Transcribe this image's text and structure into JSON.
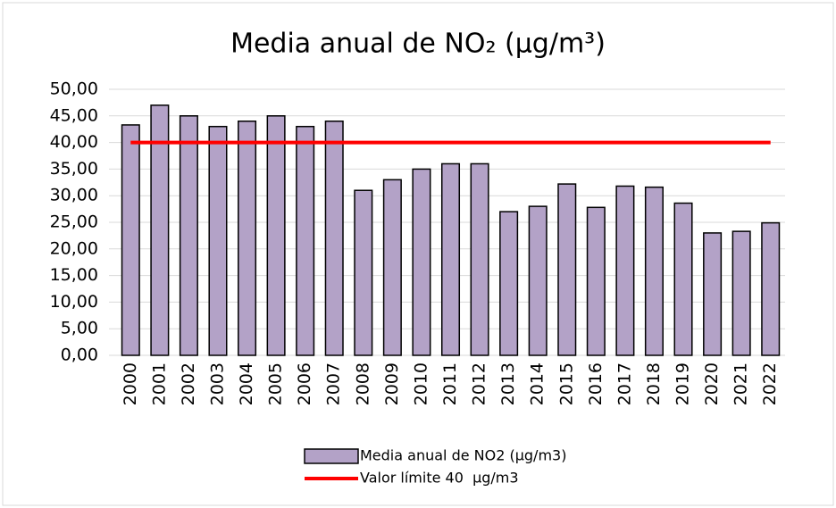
{
  "chart_data": {
    "type": "bar",
    "title": "Media anual de NO₂ (µg/m³)",
    "categories": [
      "2000",
      "2001",
      "2002",
      "2003",
      "2004",
      "2005",
      "2006",
      "2007",
      "2008",
      "2009",
      "2010",
      "2011",
      "2012",
      "2013",
      "2014",
      "2015",
      "2016",
      "2017",
      "2018",
      "2019",
      "2020",
      "2021",
      "2022"
    ],
    "series": [
      {
        "name": "Media anual de NO2 (µg/m3)",
        "type": "bar",
        "color": "#b3a2c7",
        "values": [
          43.3,
          47,
          45,
          43,
          44,
          45,
          43,
          44,
          31,
          33,
          35,
          36,
          36,
          27,
          28,
          32.2,
          27.8,
          31.8,
          31.6,
          28.6,
          23,
          23.3,
          24.9
        ]
      },
      {
        "name": "Valor límite 40  µg/m3",
        "type": "line",
        "color": "#ff0000",
        "values": [
          40,
          40,
          40,
          40,
          40,
          40,
          40,
          40,
          40,
          40,
          40,
          40,
          40,
          40,
          40,
          40,
          40,
          40,
          40,
          40,
          40,
          40,
          40
        ]
      }
    ],
    "ylim": [
      0,
      50
    ],
    "yticks": [
      {
        "value": 0,
        "label": "0,00"
      },
      {
        "value": 5,
        "label": "5,00"
      },
      {
        "value": 10,
        "label": "10,00"
      },
      {
        "value": 15,
        "label": "15,00"
      },
      {
        "value": 20,
        "label": "20,00"
      },
      {
        "value": 25,
        "label": "25,00"
      },
      {
        "value": 30,
        "label": "30,00"
      },
      {
        "value": 35,
        "label": "35,00"
      },
      {
        "value": 40,
        "label": "40,00"
      },
      {
        "value": 45,
        "label": "45,00"
      },
      {
        "value": 50,
        "label": "50,00"
      }
    ],
    "grid": true,
    "legend": "bottom"
  }
}
